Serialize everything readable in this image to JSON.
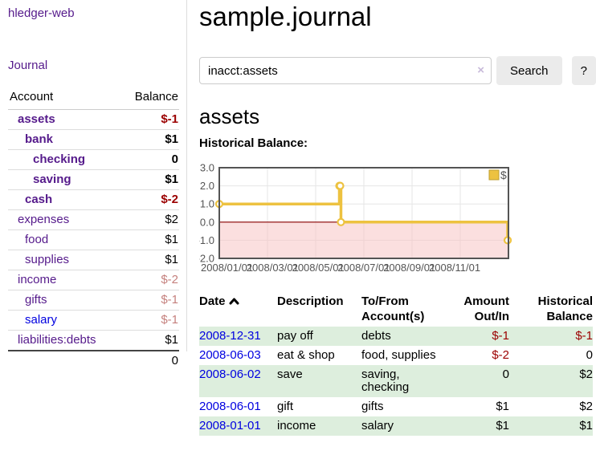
{
  "app": {
    "title": "hledger-web"
  },
  "sidebar": {
    "nav": {
      "journal_label": "Journal"
    },
    "table": {
      "account_header": "Account",
      "balance_header": "Balance"
    },
    "accounts": [
      {
        "name": "assets",
        "balance": "$-1"
      },
      {
        "name": "bank",
        "balance": "$1"
      },
      {
        "name": "checking",
        "balance": "0"
      },
      {
        "name": "saving",
        "balance": "$1"
      },
      {
        "name": "cash",
        "balance": "$-2"
      },
      {
        "name": "expenses",
        "balance": "$2"
      },
      {
        "name": "food",
        "balance": "$1"
      },
      {
        "name": "supplies",
        "balance": "$1"
      },
      {
        "name": "income",
        "balance": "$-2"
      },
      {
        "name": "gifts",
        "balance": "$-1"
      },
      {
        "name": "salary",
        "balance": "$-1"
      },
      {
        "name": "liabilities:debts",
        "balance": "$1"
      }
    ],
    "total": "0"
  },
  "header": {
    "title": "sample.journal"
  },
  "search": {
    "query": "inacct:assets",
    "clear_icon": "×",
    "button_label": "Search",
    "help_label": "?"
  },
  "account_page": {
    "title": "assets"
  },
  "chart_data": {
    "type": "line",
    "title": "Historical Balance:",
    "step": true,
    "series": [
      {
        "name": "$",
        "color": "#edc240",
        "points": [
          [
            "2008-01-01",
            1
          ],
          [
            "2008-06-01",
            2
          ],
          [
            "2008-06-02",
            2
          ],
          [
            "2008-06-03",
            0
          ],
          [
            "2008-12-31",
            -1
          ]
        ]
      }
    ],
    "x_range": [
      "2008-01-01",
      "2009-01-01"
    ],
    "x_ticks": [
      "2008/01/01",
      "2008/03/01",
      "2008/05/01",
      "2008/07/01",
      "2008/09/01",
      "2008/11/01"
    ],
    "y_ticks": [
      3.0,
      2.0,
      1.0,
      0.0,
      -1.0,
      -2.0
    ],
    "ylim": [
      -2,
      3
    ],
    "grid": true,
    "legend_position": "top-right",
    "colors": {
      "grid": "#e6e6e6",
      "border": "#545454",
      "negative_region": "#f8c0c0",
      "zero_line": "#8b0000",
      "tick_text": "#545454"
    }
  },
  "register": {
    "headers": {
      "date": "Date",
      "description": "Description",
      "accounts": "To/From Account(s)",
      "amount": "Amount Out/In",
      "balance": "Historical Balance"
    },
    "rows": [
      {
        "date": "2008-12-31",
        "description": "pay off",
        "accounts": "debts",
        "amount": "$-1",
        "balance": "$-1"
      },
      {
        "date": "2008-06-03",
        "description": "eat & shop",
        "accounts": "food, supplies",
        "amount": "$-2",
        "balance": "0"
      },
      {
        "date": "2008-06-02",
        "description": "save",
        "accounts": "saving, checking",
        "amount": "0",
        "balance": "$2"
      },
      {
        "date": "2008-06-01",
        "description": "gift",
        "accounts": "gifts",
        "amount": "$1",
        "balance": "$2"
      },
      {
        "date": "2008-01-01",
        "description": "income",
        "accounts": "salary",
        "amount": "$1",
        "balance": "$1"
      }
    ]
  },
  "colors": {
    "link_purple": "#551a8b",
    "link_blue": "#0000e0",
    "negative": "#9b0000",
    "negative_soft": "#c5807d",
    "row_green": "#ddeedd",
    "accent_gold": "#edc240"
  }
}
